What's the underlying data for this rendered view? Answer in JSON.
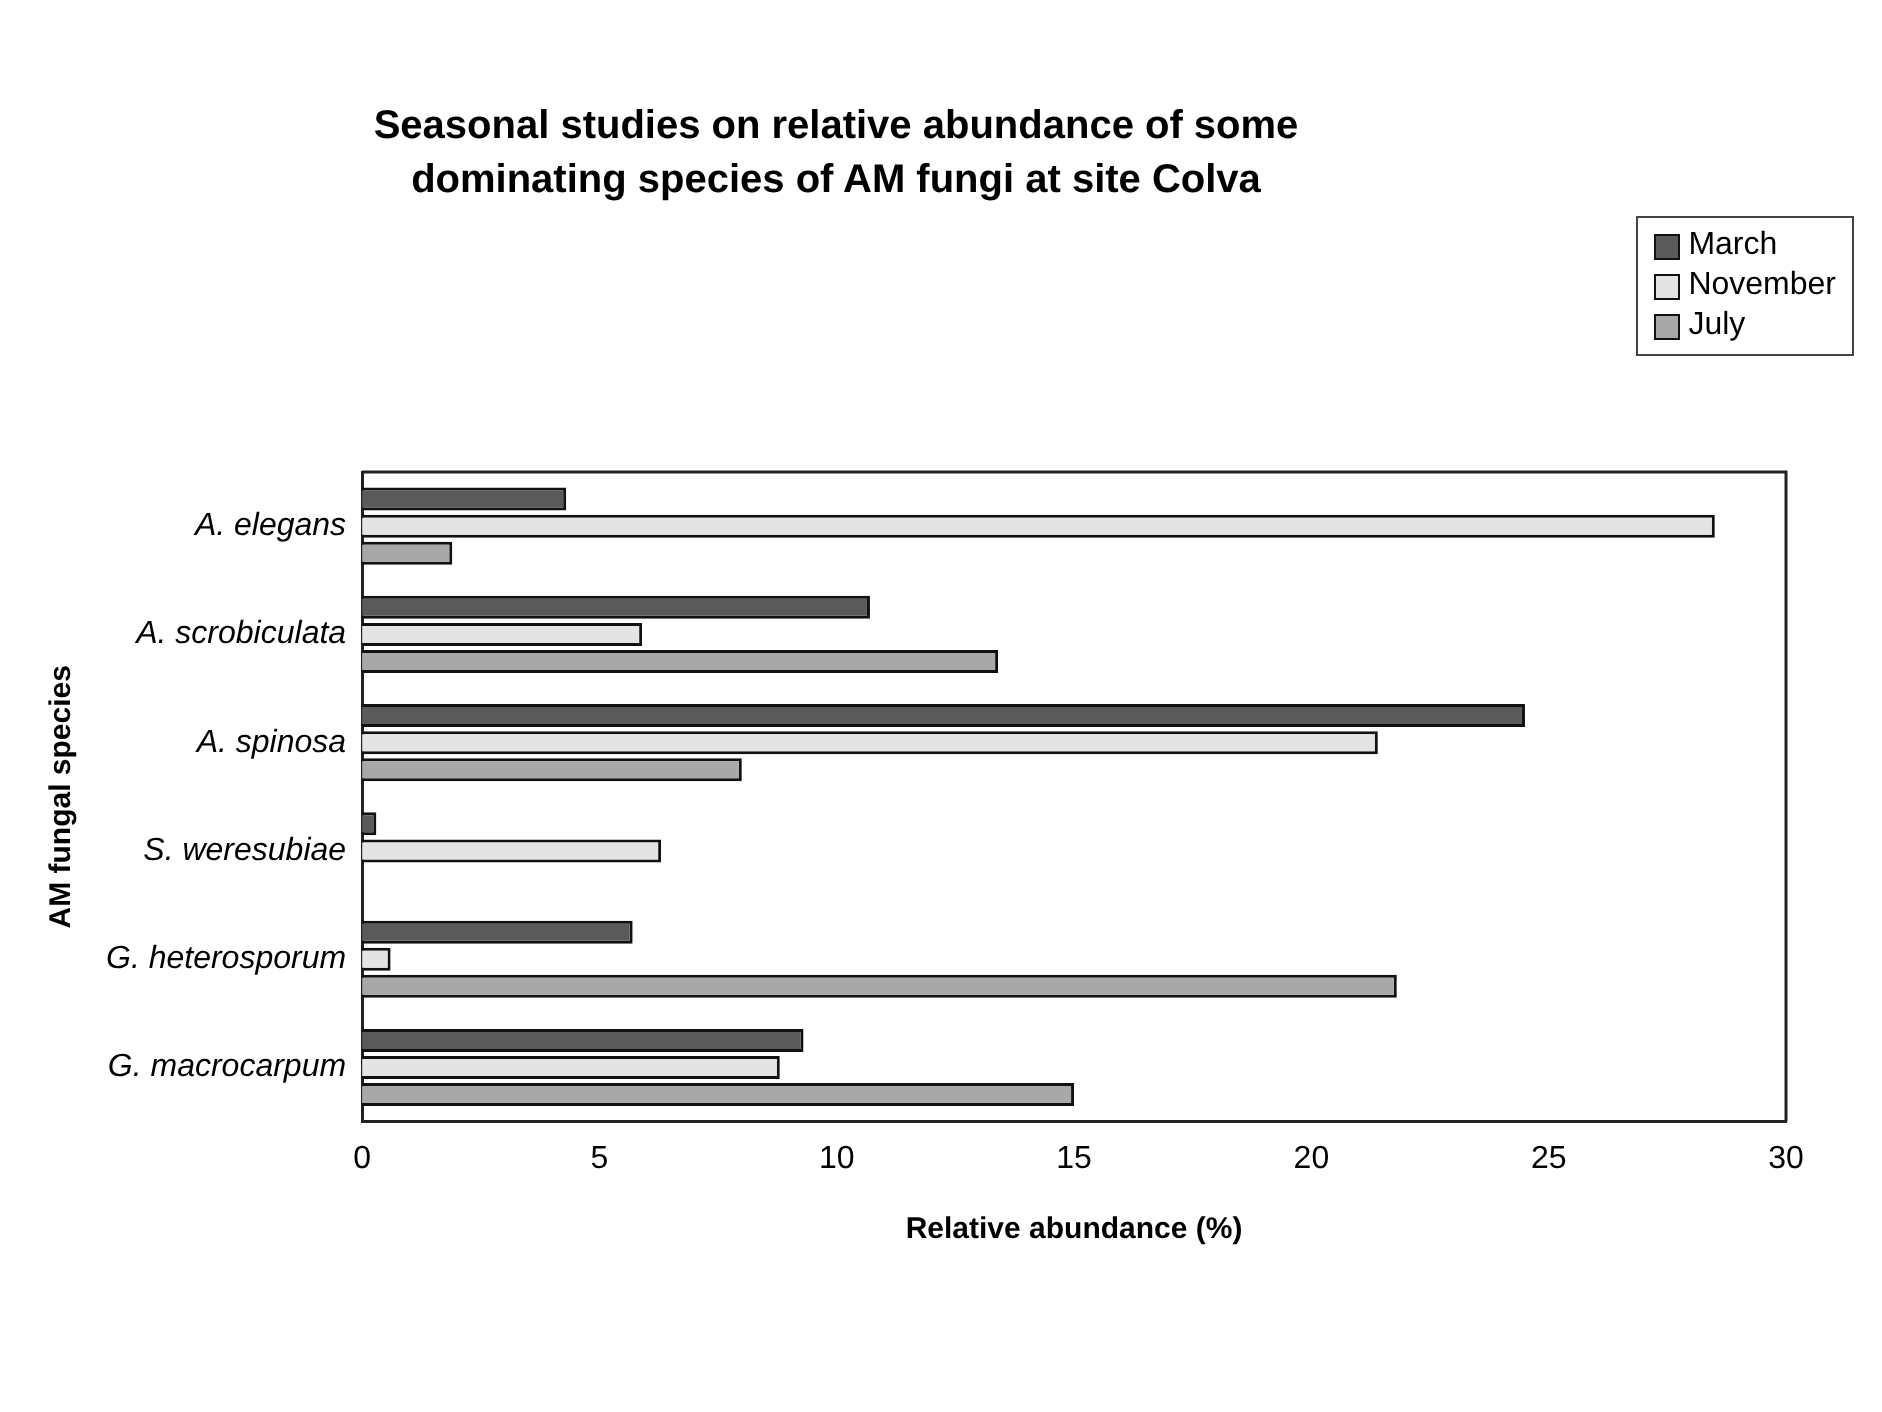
{
  "chart_data": {
    "type": "bar",
    "orientation": "horizontal",
    "title": "Seasonal studies on relative abundance of some dominating species of AM fungi at site Colva",
    "xlabel": "Relative abundance (%)",
    "ylabel": "AM fungal species",
    "categories": [
      "A. elegans",
      "A. scrobiculata",
      "A. spinosa",
      "S. weresubiae",
      "G. heterosporum",
      "G. macrocarpum"
    ],
    "series": [
      {
        "name": "March",
        "color": "#5a5a5a",
        "values": [
          4.3,
          10.7,
          24.5,
          0.3,
          5.7,
          9.3
        ]
      },
      {
        "name": "November",
        "color": "#e4e4e4",
        "values": [
          28.5,
          5.9,
          21.4,
          6.3,
          0.6,
          8.8
        ]
      },
      {
        "name": "July",
        "color": "#a8a8a8",
        "values": [
          1.9,
          13.4,
          8.0,
          null,
          21.8,
          15.0
        ]
      }
    ],
    "xlim": [
      0,
      30
    ],
    "xticks": [
      0,
      5,
      10,
      15,
      20,
      25,
      30
    ],
    "grid": false,
    "legend": "top right"
  }
}
